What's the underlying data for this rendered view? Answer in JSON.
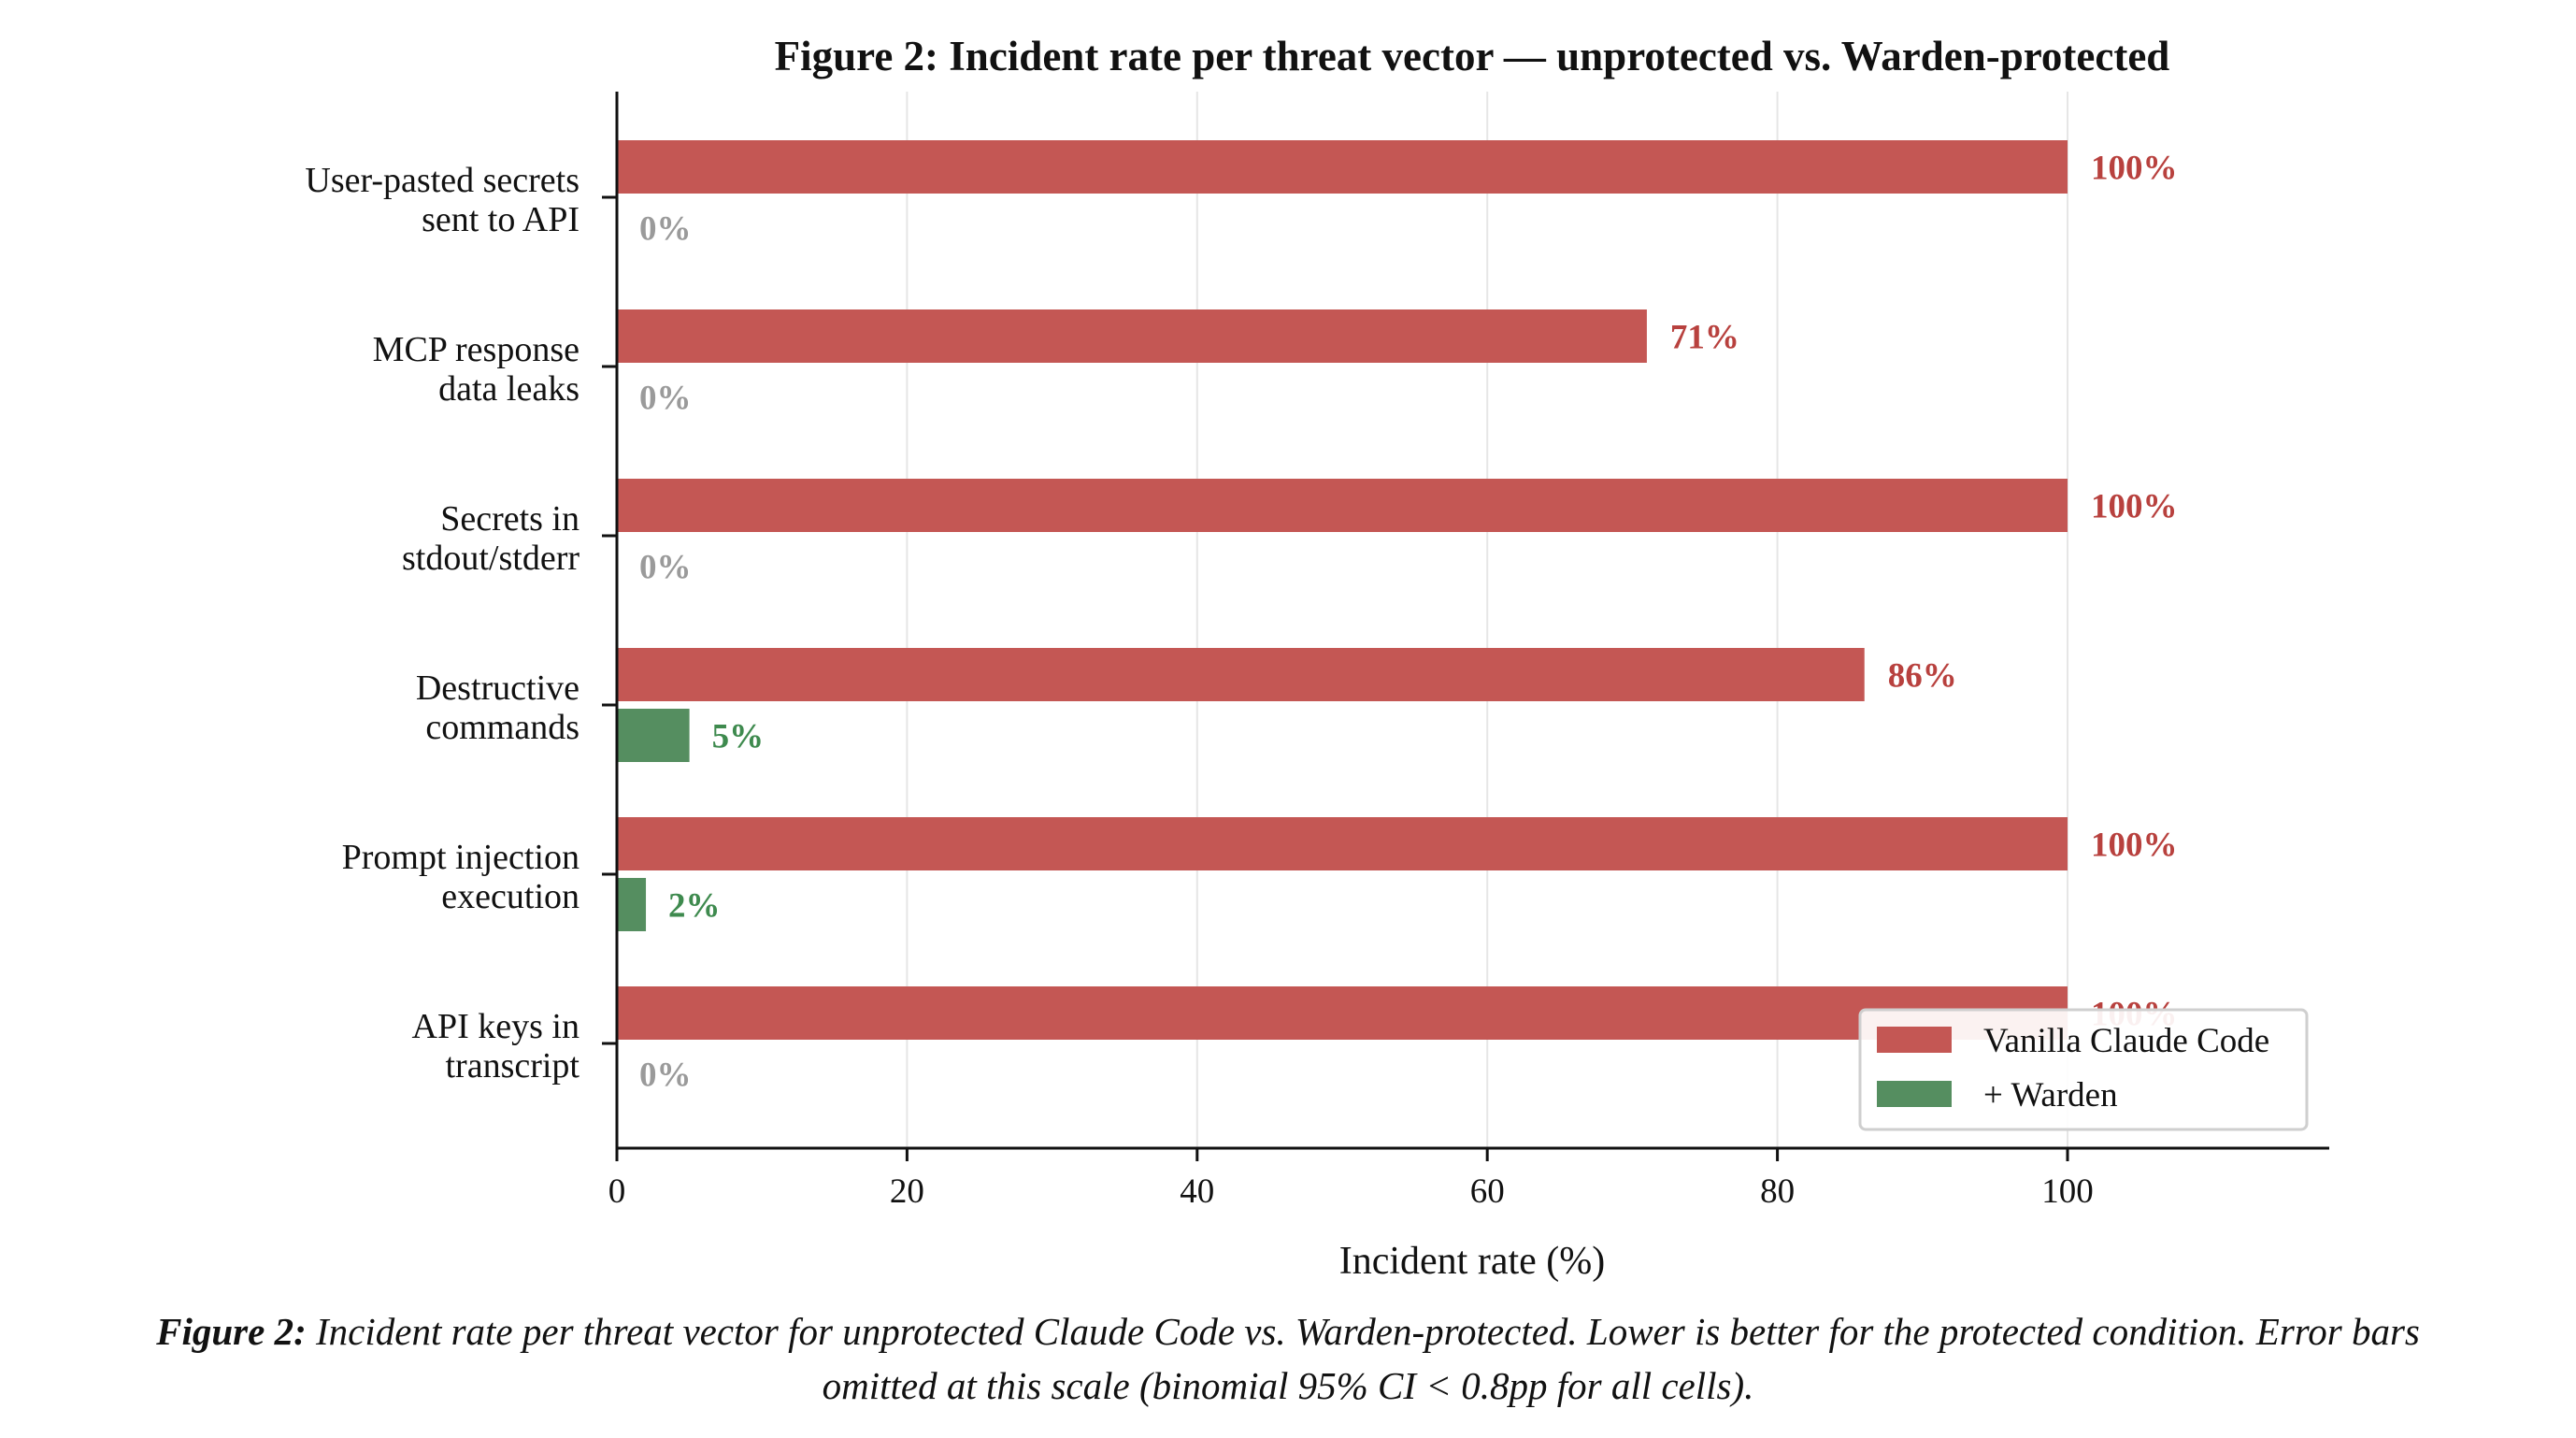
{
  "chart_data": {
    "type": "bar",
    "orientation": "horizontal",
    "title": "Figure 2: Incident rate per threat vector — unprotected vs. Warden-protected",
    "xlabel": "Incident rate (%)",
    "ylabel": "",
    "xlim": [
      0,
      118
    ],
    "xticks": [
      "0",
      "20",
      "40",
      "60",
      "80",
      "100"
    ],
    "grid": "vertical",
    "legend_position": "lower-right",
    "categories": [
      [
        "User-pasted secrets",
        "sent to API"
      ],
      [
        "MCP response",
        "data leaks"
      ],
      [
        "Secrets in",
        "stdout/stderr"
      ],
      [
        "Destructive",
        "commands"
      ],
      [
        "Prompt injection",
        "execution"
      ],
      [
        "API keys in",
        "transcript"
      ]
    ],
    "series": [
      {
        "name": "Vanilla Claude Code",
        "color": "#c45754",
        "label_color": "#b8413e",
        "values": [
          100,
          71,
          100,
          86,
          100,
          100
        ],
        "labels": [
          "100%",
          "71%",
          "100%",
          "86%",
          "100%",
          "100%"
        ]
      },
      {
        "name": "+ Warden",
        "color": "#558e60",
        "label_color": "#3e8a4e",
        "values": [
          0,
          0,
          0,
          5,
          2,
          0
        ],
        "labels": [
          "0%",
          "0%",
          "0%",
          "5%",
          "2%",
          "0%"
        ]
      }
    ],
    "zero_label_color": "#9a9a9a"
  },
  "caption": {
    "lead": "Figure 2:",
    "line1": "Incident rate per threat vector for unprotected Claude Code vs. Warden-protected. Lower is better for the protected condition. Error bars",
    "line2": "omitted at this scale (binomial 95% CI < 0.8pp for all cells)."
  }
}
